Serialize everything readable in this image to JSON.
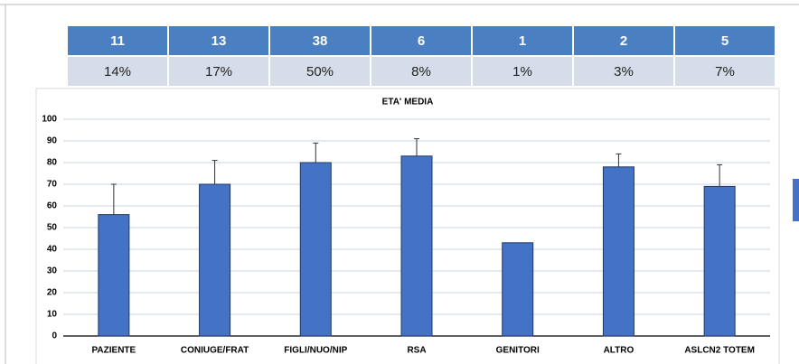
{
  "table": {
    "counts": [
      "11",
      "13",
      "38",
      "6",
      "1",
      "2",
      "5"
    ],
    "percentages": [
      "14%",
      "17%",
      "50%",
      "8%",
      "1%",
      "3%",
      "7%"
    ]
  },
  "chart_data": {
    "type": "bar",
    "title": "ETA' MEDIA",
    "categories": [
      "PAZIENTE",
      "CONIUGE/FRAT",
      "FIGLI/NUO/NIP",
      "RSA",
      "GENITORI",
      "ALTRO",
      "ASLCN2 TOTEM"
    ],
    "values": [
      56,
      70,
      80,
      83,
      43,
      78,
      69
    ],
    "errors": [
      14,
      11,
      9,
      8,
      0,
      6,
      10
    ],
    "color": "#4472c4",
    "ylim": [
      0,
      100
    ],
    "yticks": [
      0,
      10,
      20,
      30,
      40,
      50,
      60,
      70,
      80,
      90,
      100
    ],
    "grid": true
  }
}
